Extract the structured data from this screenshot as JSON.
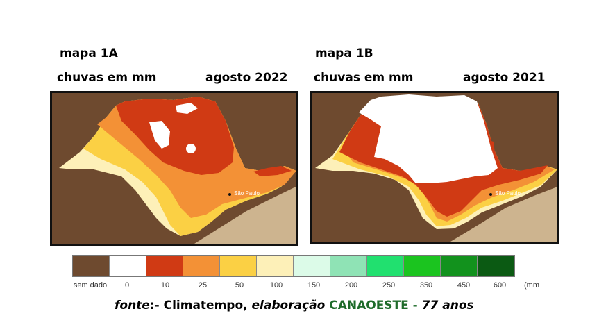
{
  "map_a": {
    "title": "mapa 1A",
    "subtitle": "chuvas em mm",
    "date": "agosto 2022",
    "city_label": "São Paulo"
  },
  "map_b": {
    "title": "mapa 1B",
    "subtitle": "chuvas em mm",
    "date": "agosto 2021",
    "city_label": "São Paulo"
  },
  "legend": {
    "unit": "(mm",
    "items": [
      {
        "label": "sem dado",
        "color": "#6e4a2f"
      },
      {
        "label": "0",
        "color": "#ffffff"
      },
      {
        "label": "10",
        "color": "#d03a14"
      },
      {
        "label": "25",
        "color": "#f39136"
      },
      {
        "label": "50",
        "color": "#fbd044"
      },
      {
        "label": "100",
        "color": "#fdf0b8"
      },
      {
        "label": "150",
        "color": "#dcfbe8"
      },
      {
        "label": "200",
        "color": "#8fe3b5"
      },
      {
        "label": "250",
        "color": "#21e06f"
      },
      {
        "label": "350",
        "color": "#1bc41f"
      },
      {
        "label": "450",
        "color": "#12921d"
      },
      {
        "label": "600",
        "color": "#0b5a13"
      }
    ]
  },
  "source": {
    "fonte": "fonte",
    "sep": ":- Climatempo, ",
    "elab": "elaboração ",
    "org": "CANAOESTE",
    "dash": " - ",
    "years": "77 anos"
  },
  "colors": {
    "no_data": "#6e4a2f",
    "ocean": "#cdb48f",
    "border": "#111111"
  }
}
